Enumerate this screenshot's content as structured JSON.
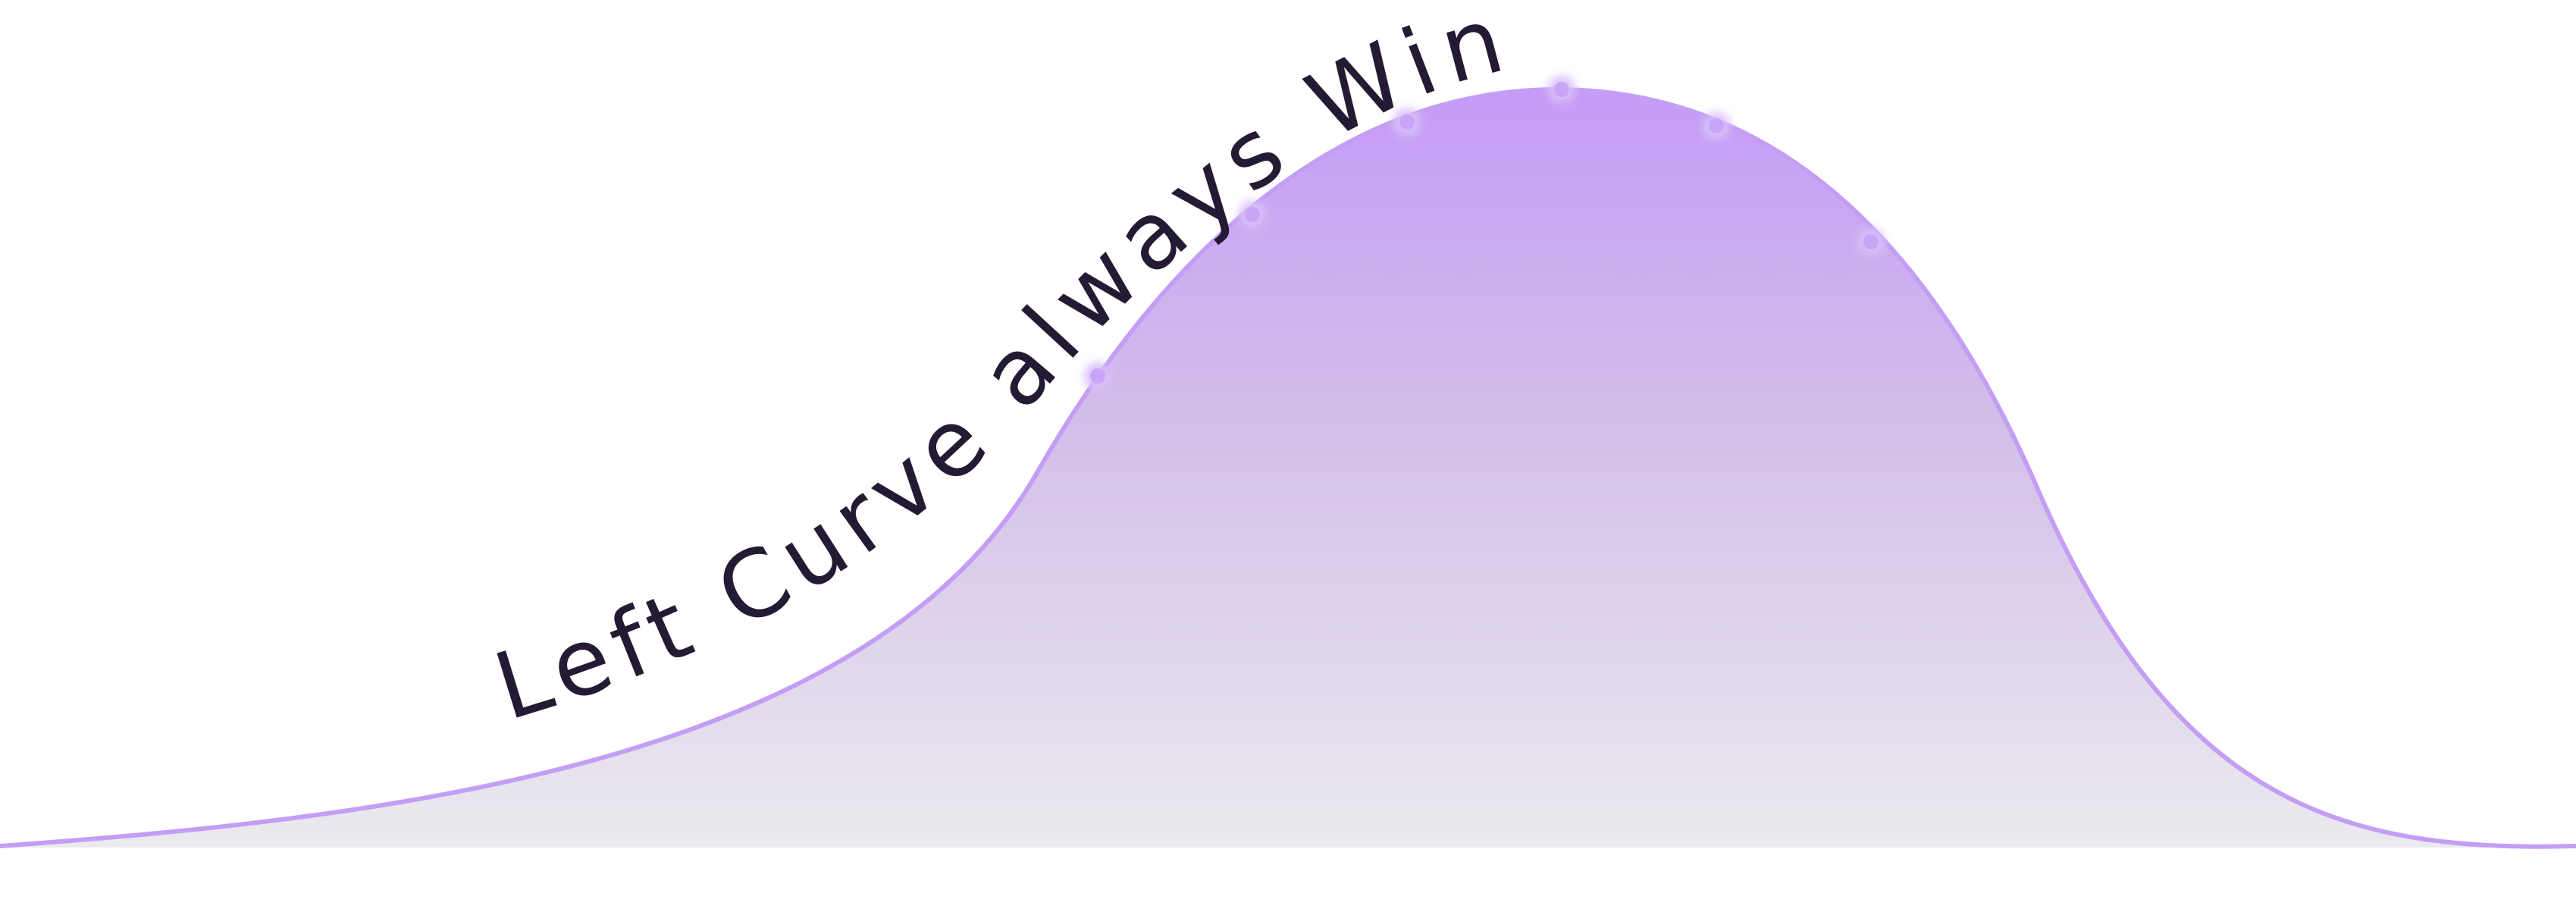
{
  "headline": "Left Curve always Win",
  "colors": {
    "curve_stroke": "#c7a1f6",
    "fill_top": "#c89ff6",
    "fill_bottom": "#e9e9ec",
    "marker_dot": "#c9a5f8",
    "marker_line": "#b5a1d0",
    "text": "#241a33"
  }
}
